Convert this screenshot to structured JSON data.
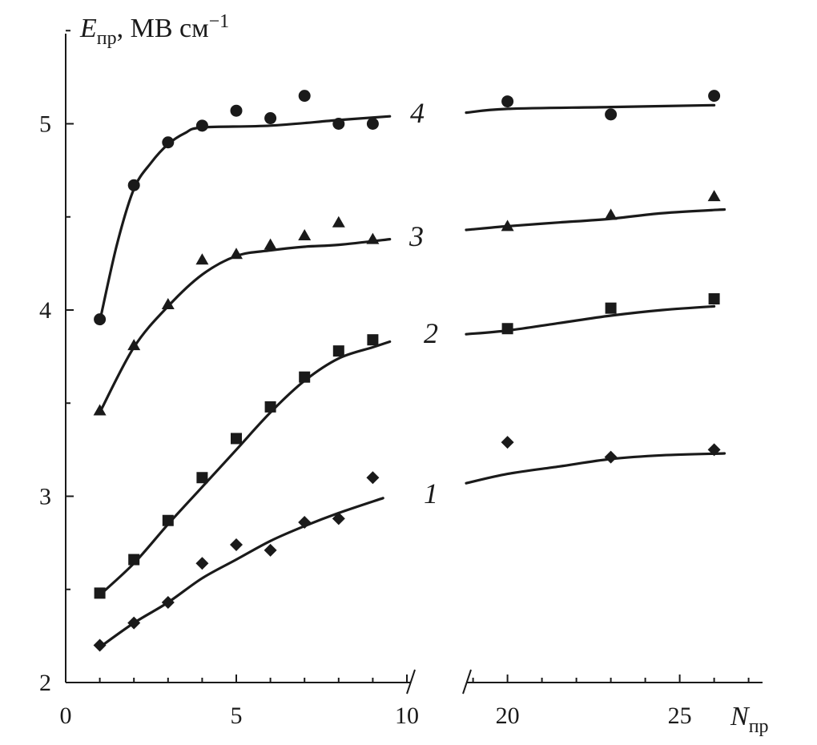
{
  "chart_data": {
    "type": "scatter",
    "title": "",
    "ylabel": {
      "main": "E",
      "sub": "пр",
      "unit": ", МВ см",
      "unit_sup": "−1"
    },
    "xlabel": {
      "main": "N",
      "sub": "пр"
    },
    "ylim": [
      2,
      5.5
    ],
    "x_segments": [
      {
        "range": [
          0,
          10
        ],
        "ticks": [
          0,
          5,
          10
        ]
      },
      {
        "range": [
          18.8,
          27.2
        ],
        "ticks": [
          20,
          25
        ]
      }
    ],
    "y_ticks": [
      2,
      3,
      4,
      5
    ],
    "series": [
      {
        "name": "1",
        "marker": "diamond",
        "points": [
          {
            "x": 1,
            "y": 2.2
          },
          {
            "x": 2,
            "y": 2.32
          },
          {
            "x": 3,
            "y": 2.43
          },
          {
            "x": 4,
            "y": 2.64
          },
          {
            "x": 5,
            "y": 2.74
          },
          {
            "x": 6,
            "y": 2.71
          },
          {
            "x": 7,
            "y": 2.86
          },
          {
            "x": 8,
            "y": 2.88
          },
          {
            "x": 9,
            "y": 3.1
          },
          {
            "x": 20,
            "y": 3.29
          },
          {
            "x": 23,
            "y": 3.21
          },
          {
            "x": 26,
            "y": 3.25
          }
        ],
        "fit_segments": [
          [
            [
              1,
              2.19
            ],
            [
              2,
              2.32
            ],
            [
              3,
              2.43
            ],
            [
              4,
              2.56
            ],
            [
              5,
              2.66
            ],
            [
              6,
              2.76
            ],
            [
              7,
              2.84
            ],
            [
              8,
              2.91
            ],
            [
              9.3,
              2.99
            ]
          ],
          [
            [
              18.8,
              3.07
            ],
            [
              20,
              3.12
            ],
            [
              21.5,
              3.16
            ],
            [
              23,
              3.2
            ],
            [
              24.5,
              3.22
            ],
            [
              26.3,
              3.23
            ]
          ]
        ]
      },
      {
        "name": "2",
        "marker": "square",
        "points": [
          {
            "x": 1,
            "y": 2.48
          },
          {
            "x": 2,
            "y": 2.66
          },
          {
            "x": 3,
            "y": 2.87
          },
          {
            "x": 4,
            "y": 3.1
          },
          {
            "x": 5,
            "y": 3.31
          },
          {
            "x": 6,
            "y": 3.48
          },
          {
            "x": 7,
            "y": 3.64
          },
          {
            "x": 8,
            "y": 3.78
          },
          {
            "x": 9,
            "y": 3.84
          },
          {
            "x": 20,
            "y": 3.9
          },
          {
            "x": 23,
            "y": 4.01
          },
          {
            "x": 26,
            "y": 4.06
          }
        ],
        "fit_segments": [
          [
            [
              1,
              2.47
            ],
            [
              2,
              2.64
            ],
            [
              3,
              2.85
            ],
            [
              4,
              3.05
            ],
            [
              5,
              3.25
            ],
            [
              6,
              3.45
            ],
            [
              7,
              3.62
            ],
            [
              8,
              3.74
            ],
            [
              9,
              3.8
            ],
            [
              9.5,
              3.83
            ]
          ],
          [
            [
              18.8,
              3.87
            ],
            [
              20,
              3.89
            ],
            [
              21.5,
              3.93
            ],
            [
              23,
              3.97
            ],
            [
              24.5,
              4.0
            ],
            [
              26,
              4.02
            ]
          ]
        ]
      },
      {
        "name": "3",
        "marker": "triangle",
        "points": [
          {
            "x": 1,
            "y": 3.46
          },
          {
            "x": 2,
            "y": 3.81
          },
          {
            "x": 3,
            "y": 4.03
          },
          {
            "x": 4,
            "y": 4.27
          },
          {
            "x": 5,
            "y": 4.3
          },
          {
            "x": 6,
            "y": 4.35
          },
          {
            "x": 7,
            "y": 4.4
          },
          {
            "x": 8,
            "y": 4.47
          },
          {
            "x": 9,
            "y": 4.38
          },
          {
            "x": 20,
            "y": 4.45
          },
          {
            "x": 23,
            "y": 4.51
          },
          {
            "x": 26,
            "y": 4.61
          }
        ],
        "fit_segments": [
          [
            [
              1,
              3.45
            ],
            [
              2,
              3.8
            ],
            [
              3,
              4.02
            ],
            [
              4,
              4.19
            ],
            [
              5,
              4.29
            ],
            [
              6,
              4.32
            ],
            [
              7,
              4.34
            ],
            [
              8,
              4.35
            ],
            [
              9.5,
              4.38
            ]
          ],
          [
            [
              18.8,
              4.43
            ],
            [
              20,
              4.45
            ],
            [
              21.5,
              4.47
            ],
            [
              23,
              4.49
            ],
            [
              24.5,
              4.52
            ],
            [
              26.3,
              4.54
            ]
          ]
        ]
      },
      {
        "name": "4",
        "marker": "circle",
        "points": [
          {
            "x": 1,
            "y": 3.95
          },
          {
            "x": 2,
            "y": 4.67
          },
          {
            "x": 3,
            "y": 4.9
          },
          {
            "x": 4,
            "y": 4.99
          },
          {
            "x": 5,
            "y": 5.07
          },
          {
            "x": 6,
            "y": 5.03
          },
          {
            "x": 7,
            "y": 5.15
          },
          {
            "x": 8,
            "y": 5.0
          },
          {
            "x": 9,
            "y": 5.0
          },
          {
            "x": 20,
            "y": 5.12
          },
          {
            "x": 23,
            "y": 5.05
          },
          {
            "x": 26,
            "y": 5.15
          }
        ],
        "fit_segments": [
          [
            [
              1,
              3.94
            ],
            [
              1.5,
              4.35
            ],
            [
              2,
              4.65
            ],
            [
              2.5,
              4.79
            ],
            [
              3,
              4.89
            ],
            [
              3.5,
              4.95
            ],
            [
              4,
              4.98
            ],
            [
              6,
              4.99
            ],
            [
              8,
              5.02
            ],
            [
              9.5,
              5.04
            ]
          ],
          [
            [
              18.8,
              5.06
            ],
            [
              20,
              5.08
            ],
            [
              23,
              5.09
            ],
            [
              26,
              5.1
            ]
          ]
        ]
      }
    ],
    "curve_labels": [
      {
        "series": "1",
        "text": "1"
      },
      {
        "series": "2",
        "text": "2"
      },
      {
        "series": "3",
        "text": "3"
      },
      {
        "series": "4",
        "text": "4"
      }
    ]
  }
}
